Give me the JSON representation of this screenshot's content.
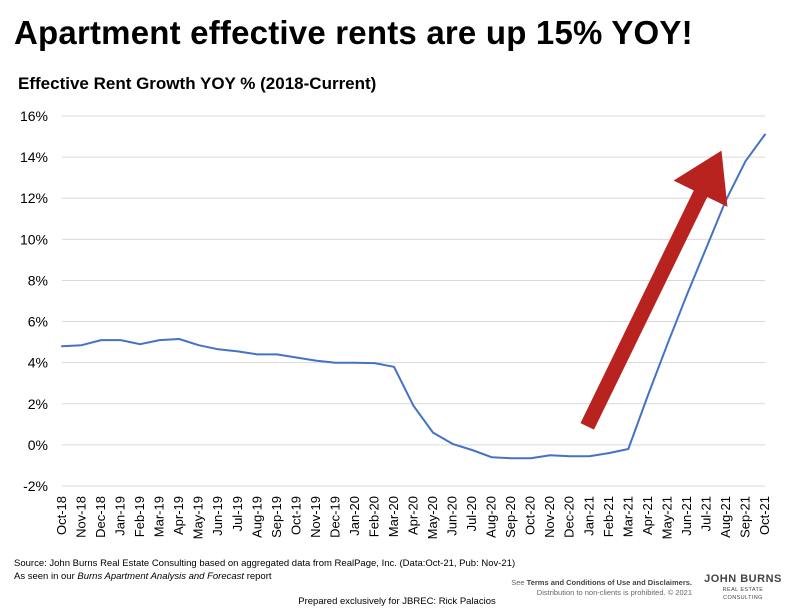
{
  "headline": "Apartment effective rents are up 15% YOY!",
  "chart_data": {
    "type": "line",
    "title": "Effective Rent Growth YOY % (2018-Current)",
    "xlabel": "",
    "ylabel": "",
    "ylim": [
      -2,
      16
    ],
    "yticks": [
      -2,
      0,
      2,
      4,
      6,
      8,
      10,
      12,
      14,
      16
    ],
    "ytick_labels": [
      "-2%",
      "0%",
      "2%",
      "4%",
      "6%",
      "8%",
      "10%",
      "12%",
      "14%",
      "16%"
    ],
    "grid": true,
    "legend": "none",
    "categories": [
      "Oct-18",
      "Nov-18",
      "Dec-18",
      "Jan-19",
      "Feb-19",
      "Mar-19",
      "Apr-19",
      "May-19",
      "Jun-19",
      "Jul-19",
      "Aug-19",
      "Sep-19",
      "Oct-19",
      "Nov-19",
      "Dec-19",
      "Jan-20",
      "Feb-20",
      "Mar-20",
      "Apr-20",
      "May-20",
      "Jun-20",
      "Jul-20",
      "Aug-20",
      "Sep-20",
      "Oct-20",
      "Nov-20",
      "Dec-20",
      "Jan-21",
      "Feb-21",
      "Mar-21",
      "Apr-21",
      "May-21",
      "Jun-21",
      "Jul-21",
      "Aug-21",
      "Sep-21",
      "Oct-21"
    ],
    "series": [
      {
        "color": "#4472c4",
        "values": [
          4.8,
          4.85,
          5.1,
          5.1,
          4.9,
          5.1,
          5.15,
          4.85,
          4.65,
          4.55,
          4.4,
          4.4,
          4.25,
          4.1,
          4.0,
          4.0,
          3.98,
          3.8,
          1.9,
          0.6,
          0.05,
          -0.25,
          -0.6,
          -0.65,
          -0.65,
          -0.5,
          -0.55,
          -0.55,
          -0.4,
          -0.2,
          2.4,
          4.9,
          7.3,
          9.6,
          11.9,
          13.8,
          15.1
        ]
      }
    ],
    "annotation": {
      "type": "arrow",
      "color": "#b9231f"
    }
  },
  "footer": {
    "source_line": "Source: John Burns Real Estate Consulting based on aggregated data from RealPage, Inc. (Data:Oct-21, Pub: Nov-21)",
    "seen_prefix": "As seen in our ",
    "seen_report": "Burns Apartment Analysis and Forecast",
    "seen_suffix": " report",
    "disclaimer_see": "See ",
    "disclaimer_bold": "Terms and Conditions of Use and Disclaimers.",
    "disclaimer_line2": "Distribution to non-clients is prohibited. © 2021",
    "logo_top": "JOHN BURNS",
    "logo_bottom": "REAL ESTATE CONSULTING",
    "prepared": "Prepared exclusively for JBREC: Rick Palacios"
  }
}
